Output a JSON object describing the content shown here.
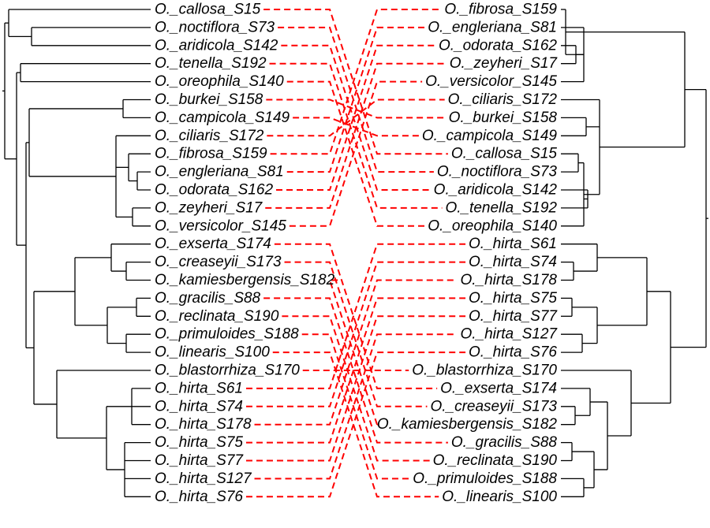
{
  "left_tips": [
    "O._callosa_S15",
    "O._noctiflora_S73",
    "O._aridicola_S142",
    "O._tenella_S192",
    "O._oreophila_S140",
    "O._burkei_S158",
    "O._campicola_S149",
    "O._ciliaris_S172",
    "O._fibrosa_S159",
    "O._engleriana_S81",
    "O._odorata_S162",
    "O._zeyheri_S17",
    "O._versicolor_S145",
    "O._exserta_S174",
    "O._creaseyii_S173",
    "O._kamiesbergensis_S182",
    "O._gracilis_S88",
    "O._reclinata_S190",
    "O._primuloides_S188",
    "O._linearis_S100",
    "O._blastorrhiza_S170",
    "O._hirta_S61",
    "O._hirta_S74",
    "O._hirta_S178",
    "O._hirta_S75",
    "O._hirta_S77",
    "O._hirta_S127",
    "O._hirta_S76"
  ],
  "right_tips": [
    "O._fibrosa_S159",
    "O._engleriana_S81",
    "O._odorata_S162",
    "O._zeyheri_S17",
    "O._versicolor_S145",
    "O._ciliaris_S172",
    "O._burkei_S158",
    "O._campicola_S149",
    "O._callosa_S15",
    "O._noctiflora_S73",
    "O._aridicola_S142",
    "O._tenella_S192",
    "O._oreophila_S140",
    "O._hirta_S61",
    "O._hirta_S74",
    "O._hirta_S178",
    "O._hirta_S75",
    "O._hirta_S77",
    "O._hirta_S127",
    "O._hirta_S76",
    "O._blastorrhiza_S170",
    "O._exserta_S174",
    "O._creaseyii_S173",
    "O._kamiesbergensis_S182",
    "O._gracilis_S88",
    "O._reclinata_S190",
    "O._primuloides_S188",
    "O._linearis_S100"
  ],
  "colors": {
    "connector": "#ff0000",
    "branch": "#000000"
  }
}
